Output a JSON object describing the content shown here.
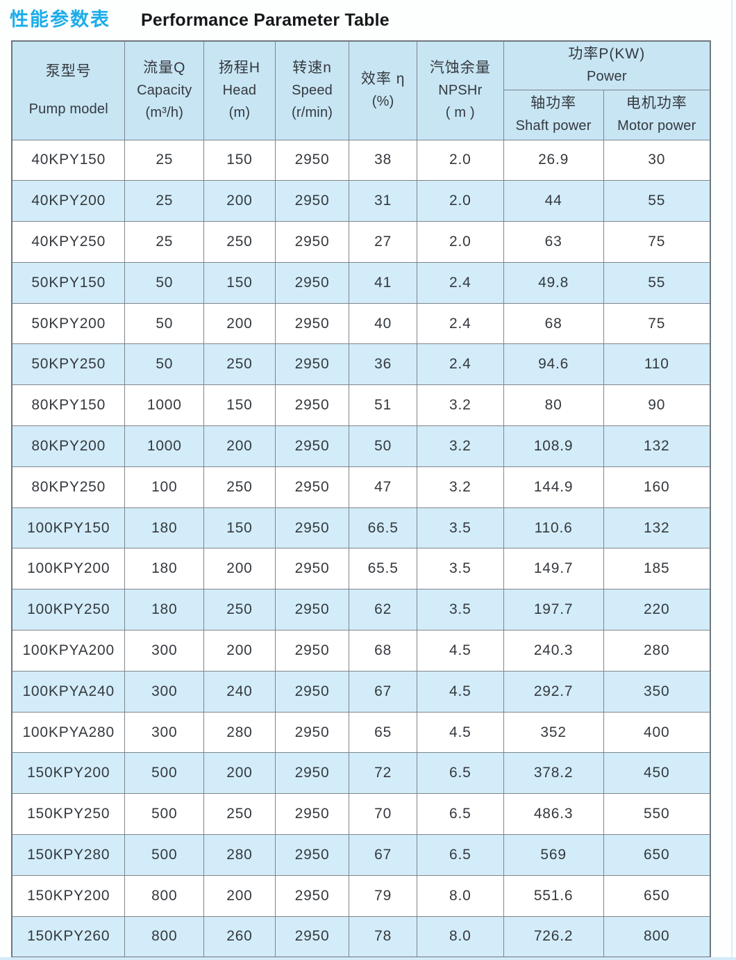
{
  "header": {
    "title_zh": "性能参数表",
    "title_en": "Performance Parameter Table"
  },
  "table": {
    "headers": {
      "pump_model": {
        "zh": "泵型号",
        "en": "Pump model"
      },
      "capacity": {
        "zh": "流量Q",
        "en": "Capacity",
        "unit": "(m³/h)"
      },
      "head": {
        "zh": "扬程H",
        "en": "Head",
        "unit": "(m)"
      },
      "speed": {
        "zh": "转速n",
        "en": "Speed",
        "unit": "(r/min)"
      },
      "efficiency": {
        "zh": "效率 η",
        "unit": "(%)"
      },
      "npshr": {
        "zh": "汽蚀余量",
        "en": "NPSHr",
        "unit": "( m )"
      },
      "power": {
        "zh": "功率P(KW)",
        "en": "Power"
      },
      "shaft_power": {
        "zh": "轴功率",
        "en": "Shaft power"
      },
      "motor_power": {
        "zh": "电机功率",
        "en": "Motor power"
      }
    },
    "column_keys": [
      "pump_model",
      "capacity",
      "head",
      "speed",
      "efficiency",
      "npshr",
      "shaft_power",
      "motor_power"
    ],
    "rows": [
      [
        "40KPY150",
        "25",
        "150",
        "2950",
        "38",
        "2.0",
        "26.9",
        "30"
      ],
      [
        "40KPY200",
        "25",
        "200",
        "2950",
        "31",
        "2.0",
        "44",
        "55"
      ],
      [
        "40KPY250",
        "25",
        "250",
        "2950",
        "27",
        "2.0",
        "63",
        "75"
      ],
      [
        "50KPY150",
        "50",
        "150",
        "2950",
        "41",
        "2.4",
        "49.8",
        "55"
      ],
      [
        "50KPY200",
        "50",
        "200",
        "2950",
        "40",
        "2.4",
        "68",
        "75"
      ],
      [
        "50KPY250",
        "50",
        "250",
        "2950",
        "36",
        "2.4",
        "94.6",
        "110"
      ],
      [
        "80KPY150",
        "1000",
        "150",
        "2950",
        "51",
        "3.2",
        "80",
        "90"
      ],
      [
        "80KPY200",
        "1000",
        "200",
        "2950",
        "50",
        "3.2",
        "108.9",
        "132"
      ],
      [
        "80KPY250",
        "100",
        "250",
        "2950",
        "47",
        "3.2",
        "144.9",
        "160"
      ],
      [
        "100KPY150",
        "180",
        "150",
        "2950",
        "66.5",
        "3.5",
        "110.6",
        "132"
      ],
      [
        "100KPY200",
        "180",
        "200",
        "2950",
        "65.5",
        "3.5",
        "149.7",
        "185"
      ],
      [
        "100KPY250",
        "180",
        "250",
        "2950",
        "62",
        "3.5",
        "197.7",
        "220"
      ],
      [
        "100KPYA200",
        "300",
        "200",
        "2950",
        "68",
        "4.5",
        "240.3",
        "280"
      ],
      [
        "100KPYA240",
        "300",
        "240",
        "2950",
        "67",
        "4.5",
        "292.7",
        "350"
      ],
      [
        "100KPYA280",
        "300",
        "280",
        "2950",
        "65",
        "4.5",
        "352",
        "400"
      ],
      [
        "150KPY200",
        "500",
        "200",
        "2950",
        "72",
        "6.5",
        "378.2",
        "450"
      ],
      [
        "150KPY250",
        "500",
        "250",
        "2950",
        "70",
        "6.5",
        "486.3",
        "550"
      ],
      [
        "150KPY280",
        "500",
        "280",
        "2950",
        "67",
        "6.5",
        "569",
        "650"
      ],
      [
        "150KPY200",
        "800",
        "200",
        "2950",
        "79",
        "8.0",
        "551.6",
        "650"
      ],
      [
        "150KPY260",
        "800",
        "260",
        "2950",
        "78",
        "8.0",
        "726.2",
        "800"
      ]
    ]
  },
  "colors": {
    "accent_blue": "#1badea",
    "header_bg": "#c8e5f4",
    "row_alt_bg": "#d3ecf9",
    "border": "#7d858c",
    "text": "#34393e"
  }
}
